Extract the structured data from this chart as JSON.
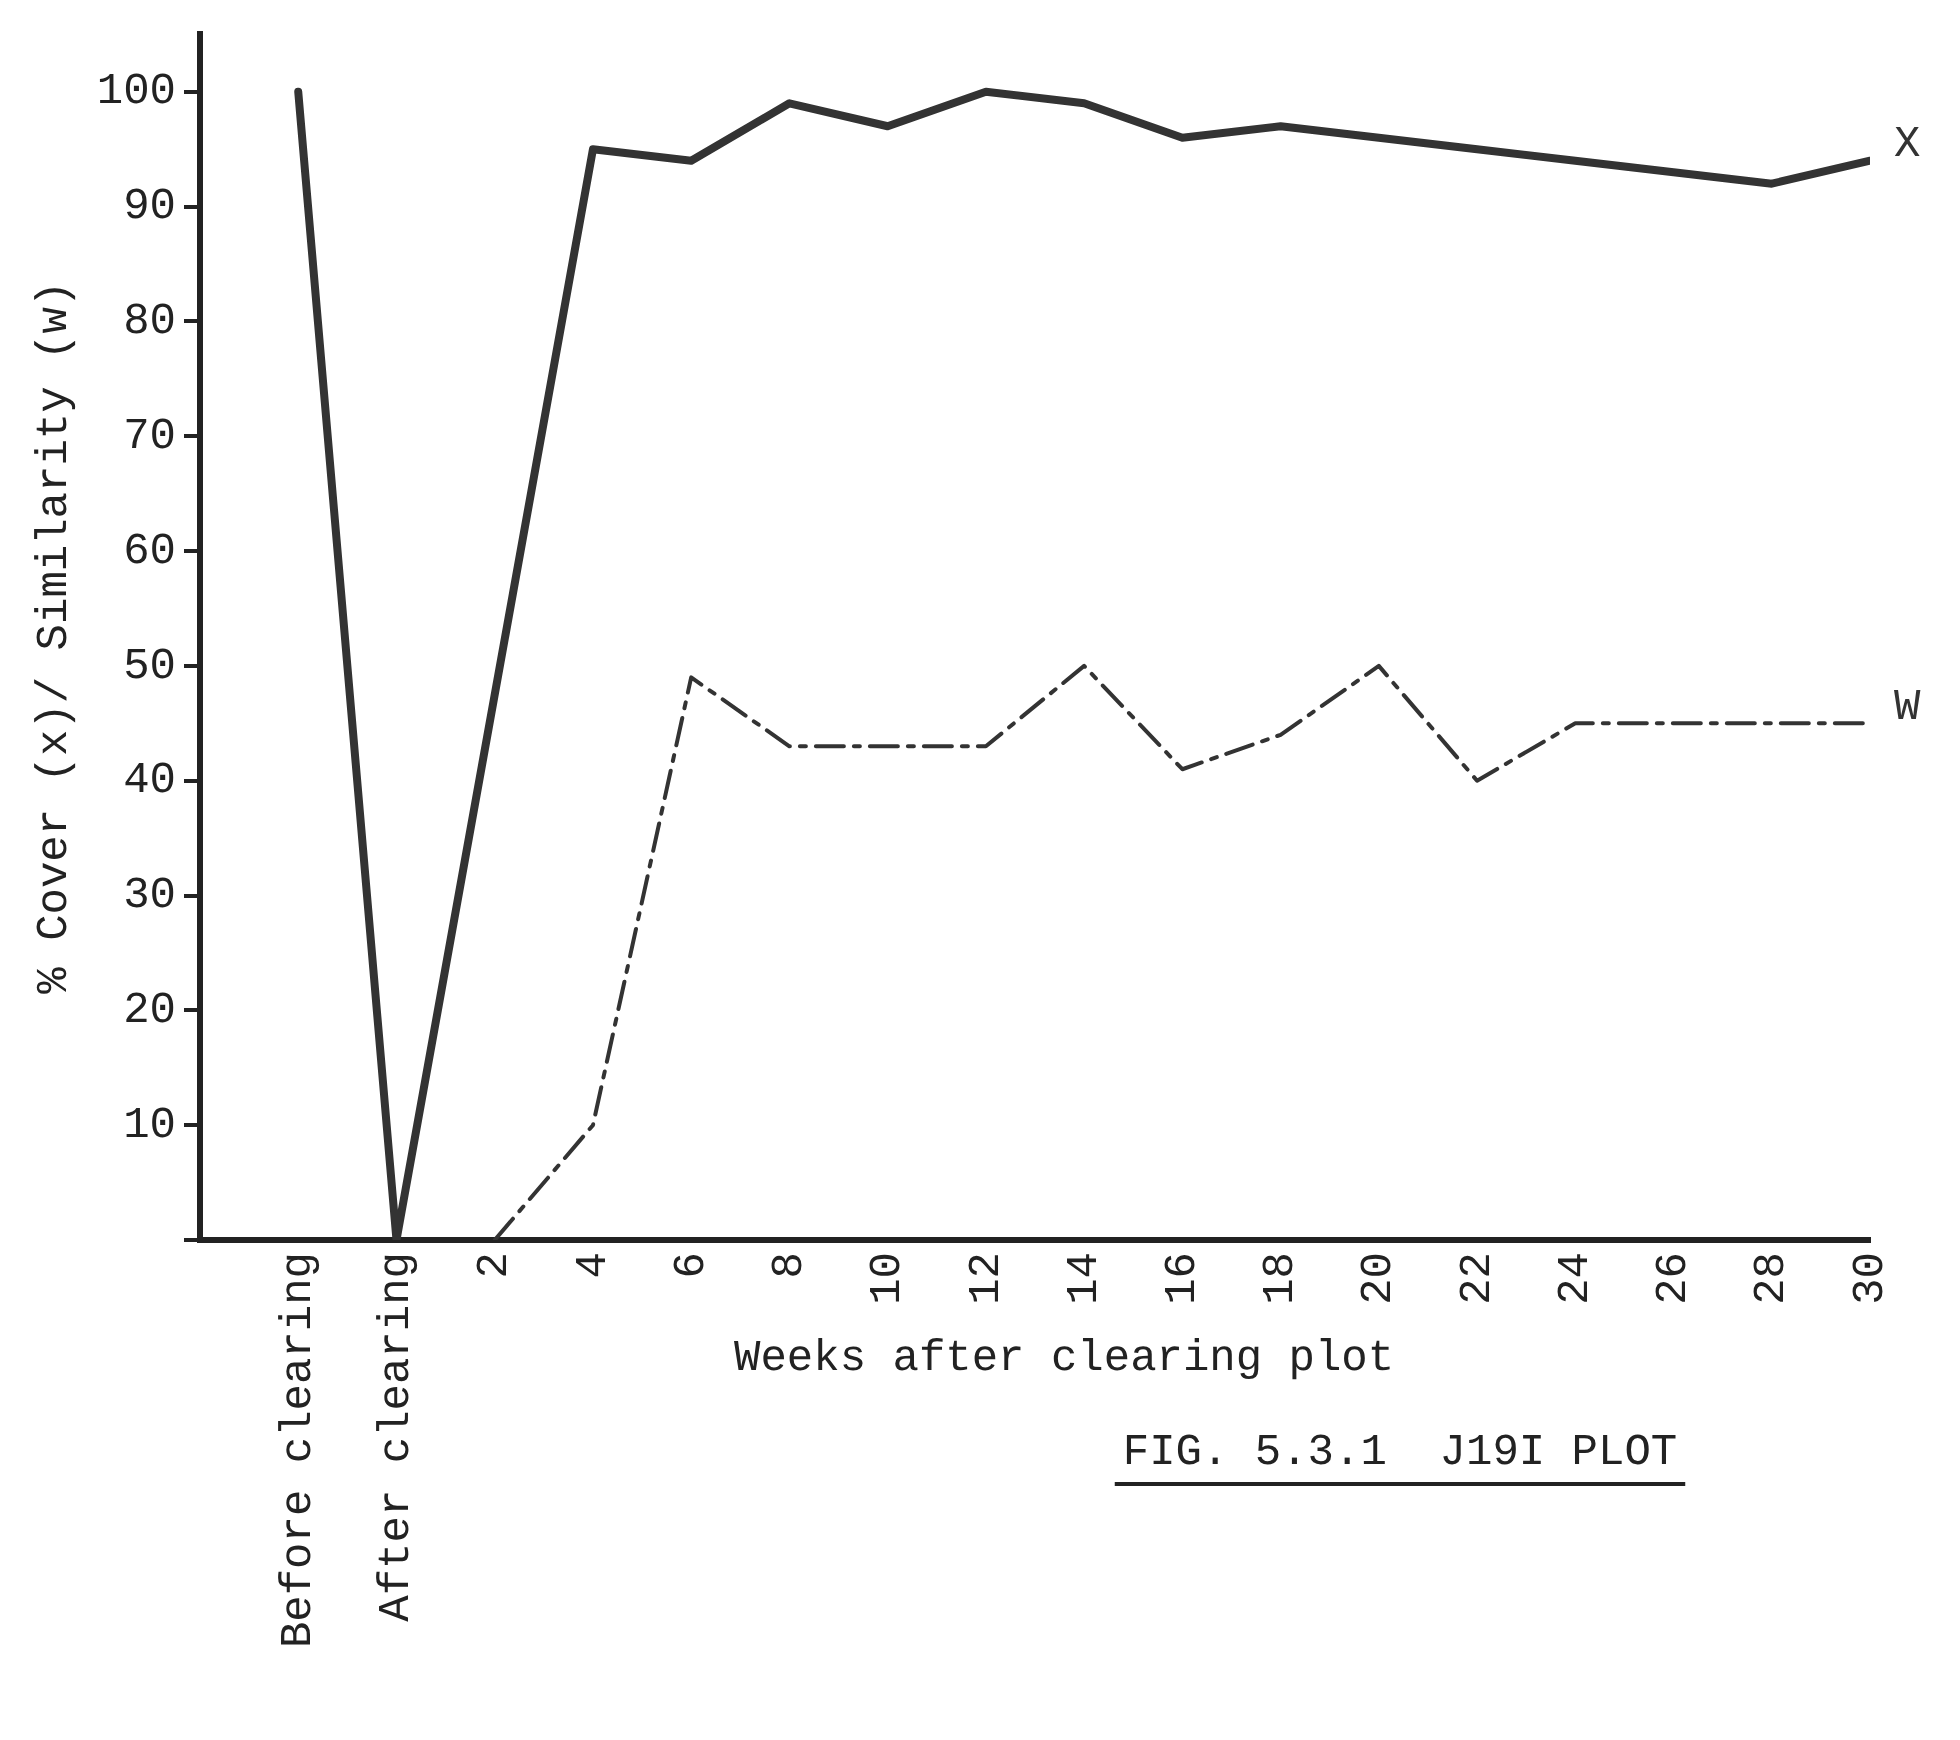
{
  "chart_data": {
    "type": "line",
    "ylabel": "% Cover (x)/ Similarity (w)",
    "xlabel": "Weeks after clearing plot",
    "categories": [
      "Before clearing",
      "After clearing",
      "2",
      "4",
      "6",
      "8",
      "10",
      "12",
      "14",
      "16",
      "18",
      "20",
      "22",
      "24",
      "26",
      "28",
      "30"
    ],
    "series": [
      {
        "name": "X",
        "color": "#333333",
        "line_style": "solid",
        "values": [
          100,
          0,
          null,
          95,
          94,
          99,
          97,
          100,
          99,
          96,
          97,
          96,
          95,
          94,
          93,
          92,
          94
        ]
      },
      {
        "name": "W",
        "color": "#333333",
        "line_style": "dashdot",
        "values": [
          null,
          null,
          0,
          10,
          49,
          43,
          43,
          43,
          50,
          41,
          44,
          50,
          40,
          45,
          45,
          45,
          45
        ]
      }
    ],
    "ylim": [
      0,
      105
    ],
    "yticks": [
      {
        "value": 0,
        "label": null
      },
      10,
      20,
      30,
      40,
      50,
      60,
      70,
      80,
      90,
      100
    ],
    "grid": false,
    "legend": false,
    "marker": "none",
    "annotations": [
      "FIG. 5.3.1  J19I PLOT"
    ]
  }
}
